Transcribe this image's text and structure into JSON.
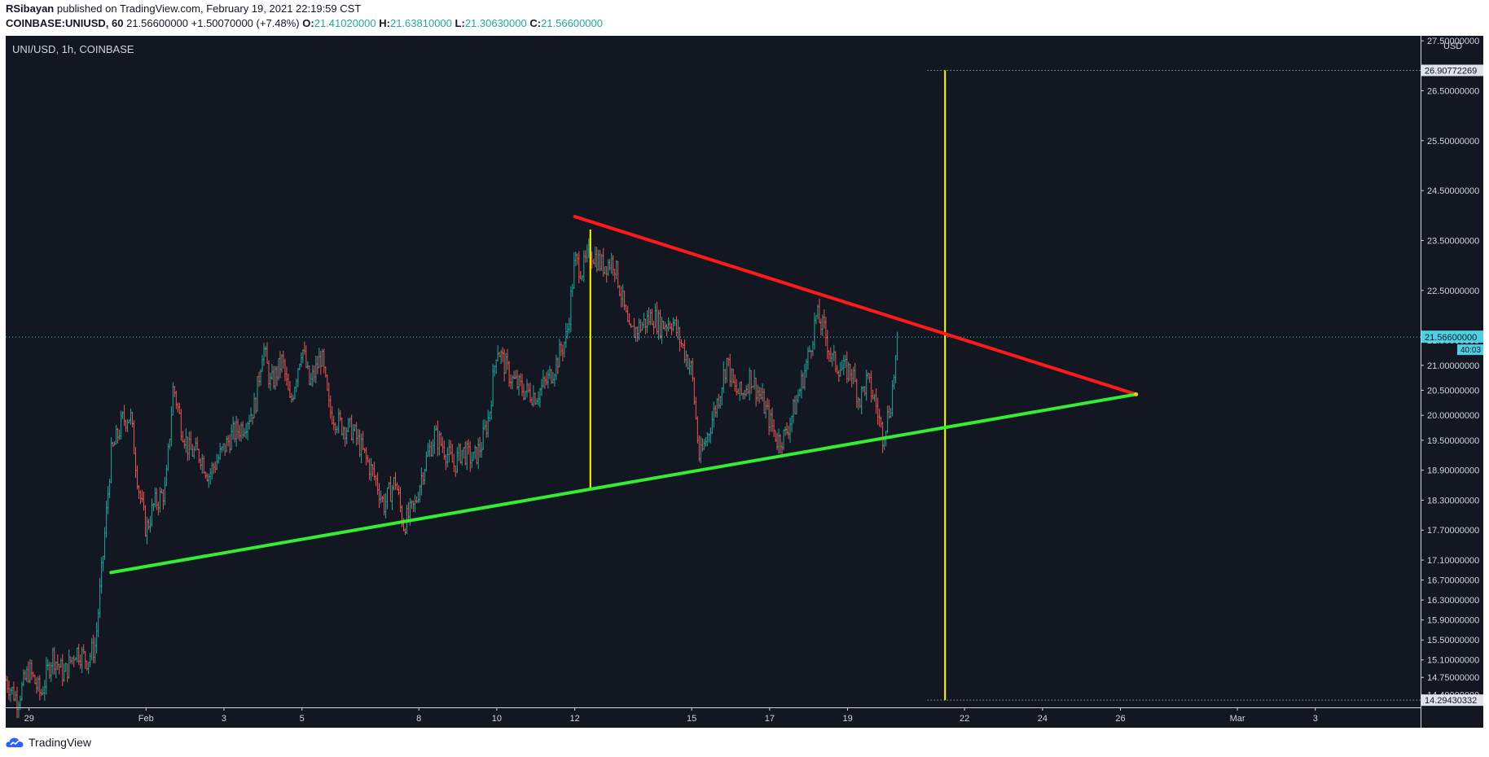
{
  "header": {
    "author": "RSibayan",
    "published_text": "published on TradingView.com, February 19, 2021 22:19:59 CST",
    "symbol": "COINBASE:UNIUSD, 60",
    "last_price": "21.56600000",
    "change": "+1.50070000 (+7.48%)",
    "o_label": "O:",
    "o_value": "21.41020000",
    "h_label": "H:",
    "h_value": "21.63810000",
    "l_label": "L:",
    "l_value": "21.30630000",
    "c_label": "C:",
    "c_value": "21.56600000"
  },
  "footer": {
    "brand": "TradingView"
  },
  "colors": {
    "background": "#131722",
    "up": "#26a69a",
    "down": "#ef5350",
    "resistance": "#ff1a1a",
    "support": "#33ee33",
    "measure": "#ffff00",
    "price_label": "#4dd0e1"
  },
  "chart_data": {
    "type": "candlestick",
    "title": "UNI/USD, 1h, COINBASE",
    "currency": "USD",
    "ylim": [
      14.15,
      27.6
    ],
    "y_ticks": [
      "27.50000000",
      "26.50000000",
      "25.50000000",
      "24.50000000",
      "23.50000000",
      "22.50000000",
      "21.50000000",
      "21.00000000",
      "20.50000000",
      "20.00000000",
      "19.50000000",
      "18.90000000",
      "18.30000000",
      "17.70000000",
      "17.10000000",
      "16.70000000",
      "16.30000000",
      "15.90000000",
      "15.50000000",
      "15.10000000",
      "14.75000000",
      "14.40000000"
    ],
    "x_ticks": [
      {
        "label": "29",
        "day": -3
      },
      {
        "label": "Feb",
        "day": 0
      },
      {
        "label": "3",
        "day": 2
      },
      {
        "label": "5",
        "day": 4
      },
      {
        "label": "8",
        "day": 7
      },
      {
        "label": "10",
        "day": 9
      },
      {
        "label": "12",
        "day": 11
      },
      {
        "label": "15",
        "day": 14
      },
      {
        "label": "17",
        "day": 16
      },
      {
        "label": "19",
        "day": 18
      },
      {
        "label": "22",
        "day": 21
      },
      {
        "label": "24",
        "day": 23
      },
      {
        "label": "26",
        "day": 25
      },
      {
        "label": "Mar",
        "day": 28
      },
      {
        "label": "3",
        "day": 30
      }
    ],
    "xlim_days": [
      -3.6,
      32.7
    ],
    "current_price": {
      "value": 21.566,
      "label": "21.56600000",
      "countdown": "40:03"
    },
    "target_labels": [
      {
        "value": 26.9077,
        "label": "26.90772269"
      },
      {
        "value": 14.2943,
        "label": "14.29430332"
      }
    ],
    "trendlines": [
      {
        "name": "resistance",
        "points": [
          [
            11.0,
            23.98
          ],
          [
            25.4,
            20.42
          ]
        ]
      },
      {
        "name": "support",
        "points": [
          [
            -0.9,
            16.85
          ],
          [
            25.4,
            20.42
          ]
        ]
      }
    ],
    "measure_lines": [
      {
        "name": "pattern-height",
        "points": [
          [
            11.4,
            23.72
          ],
          [
            11.4,
            18.5
          ]
        ]
      },
      {
        "name": "breakout-target",
        "points": [
          [
            20.5,
            26.9077
          ],
          [
            20.5,
            14.2943
          ]
        ]
      }
    ],
    "keypoints": [
      {
        "day": -3.6,
        "price": 14.7
      },
      {
        "day": -3.3,
        "price": 14.3
      },
      {
        "day": -3.0,
        "price": 14.9
      },
      {
        "day": -2.7,
        "price": 14.4
      },
      {
        "day": -2.4,
        "price": 15.2
      },
      {
        "day": -2.1,
        "price": 14.8
      },
      {
        "day": -1.8,
        "price": 15.3
      },
      {
        "day": -1.5,
        "price": 15.1
      },
      {
        "day": -1.3,
        "price": 15.4
      },
      {
        "day": -1.1,
        "price": 17.2
      },
      {
        "day": -0.9,
        "price": 19.2
      },
      {
        "day": -0.6,
        "price": 19.9
      },
      {
        "day": -0.4,
        "price": 20.0
      },
      {
        "day": -0.2,
        "price": 18.6
      },
      {
        "day": 0.0,
        "price": 17.7
      },
      {
        "day": 0.2,
        "price": 18.2
      },
      {
        "day": 0.5,
        "price": 18.5
      },
      {
        "day": 0.7,
        "price": 20.6
      },
      {
        "day": 0.9,
        "price": 19.8
      },
      {
        "day": 1.1,
        "price": 19.3
      },
      {
        "day": 1.4,
        "price": 19.2
      },
      {
        "day": 1.6,
        "price": 18.8
      },
      {
        "day": 1.9,
        "price": 19.2
      },
      {
        "day": 2.2,
        "price": 19.6
      },
      {
        "day": 2.5,
        "price": 19.8
      },
      {
        "day": 2.8,
        "price": 20.2
      },
      {
        "day": 3.0,
        "price": 21.4
      },
      {
        "day": 3.2,
        "price": 20.6
      },
      {
        "day": 3.5,
        "price": 21.1
      },
      {
        "day": 3.7,
        "price": 20.2
      },
      {
        "day": 4.0,
        "price": 21.4
      },
      {
        "day": 4.2,
        "price": 20.6
      },
      {
        "day": 4.5,
        "price": 21.2
      },
      {
        "day": 4.7,
        "price": 20.1
      },
      {
        "day": 5.0,
        "price": 19.8
      },
      {
        "day": 5.3,
        "price": 19.7
      },
      {
        "day": 5.6,
        "price": 19.2
      },
      {
        "day": 5.9,
        "price": 18.7
      },
      {
        "day": 6.1,
        "price": 18.2
      },
      {
        "day": 6.4,
        "price": 18.7
      },
      {
        "day": 6.6,
        "price": 17.8
      },
      {
        "day": 6.9,
        "price": 18.2
      },
      {
        "day": 7.1,
        "price": 18.9
      },
      {
        "day": 7.4,
        "price": 19.6
      },
      {
        "day": 7.6,
        "price": 19.4
      },
      {
        "day": 7.9,
        "price": 19.0
      },
      {
        "day": 8.1,
        "price": 19.3
      },
      {
        "day": 8.4,
        "price": 19.1
      },
      {
        "day": 8.6,
        "price": 19.4
      },
      {
        "day": 8.8,
        "price": 20.0
      },
      {
        "day": 9.0,
        "price": 21.4
      },
      {
        "day": 9.2,
        "price": 21.0
      },
      {
        "day": 9.4,
        "price": 20.7
      },
      {
        "day": 9.7,
        "price": 20.5
      },
      {
        "day": 10.0,
        "price": 20.4
      },
      {
        "day": 10.3,
        "price": 20.7
      },
      {
        "day": 10.5,
        "price": 21.0
      },
      {
        "day": 10.8,
        "price": 21.6
      },
      {
        "day": 11.0,
        "price": 23.1
      },
      {
        "day": 11.2,
        "price": 22.9
      },
      {
        "day": 11.4,
        "price": 23.3
      },
      {
        "day": 11.7,
        "price": 23.0
      },
      {
        "day": 12.0,
        "price": 23.1
      },
      {
        "day": 12.2,
        "price": 22.4
      },
      {
        "day": 12.4,
        "price": 21.6
      },
      {
        "day": 12.7,
        "price": 21.8
      },
      {
        "day": 13.0,
        "price": 22.0
      },
      {
        "day": 13.2,
        "price": 21.8
      },
      {
        "day": 13.5,
        "price": 21.9
      },
      {
        "day": 13.8,
        "price": 21.3
      },
      {
        "day": 14.0,
        "price": 20.9
      },
      {
        "day": 14.2,
        "price": 19.1
      },
      {
        "day": 14.4,
        "price": 19.6
      },
      {
        "day": 14.7,
        "price": 20.4
      },
      {
        "day": 14.9,
        "price": 21.1
      },
      {
        "day": 15.1,
        "price": 20.5
      },
      {
        "day": 15.3,
        "price": 20.4
      },
      {
        "day": 15.5,
        "price": 20.8
      },
      {
        "day": 15.8,
        "price": 20.3
      },
      {
        "day": 16.0,
        "price": 19.9
      },
      {
        "day": 16.2,
        "price": 19.5
      },
      {
        "day": 16.4,
        "price": 19.6
      },
      {
        "day": 16.7,
        "price": 20.3
      },
      {
        "day": 17.0,
        "price": 21.2
      },
      {
        "day": 17.2,
        "price": 22.0
      },
      {
        "day": 17.4,
        "price": 21.7
      },
      {
        "day": 17.6,
        "price": 21.1
      },
      {
        "day": 17.9,
        "price": 20.9
      },
      {
        "day": 18.1,
        "price": 20.9
      },
      {
        "day": 18.3,
        "price": 20.3
      },
      {
        "day": 18.5,
        "price": 20.7
      },
      {
        "day": 18.7,
        "price": 20.3
      },
      {
        "day": 18.9,
        "price": 19.6
      },
      {
        "day": 19.1,
        "price": 20.2
      },
      {
        "day": 19.3,
        "price": 21.57
      }
    ]
  }
}
